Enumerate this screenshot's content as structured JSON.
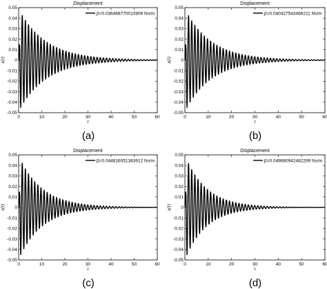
{
  "chart_data": [
    {
      "id": "a",
      "type": "line",
      "title": "Displacement",
      "xlabel": "t",
      "ylabel": "x(t)",
      "xlim": [
        0,
        60
      ],
      "ylim": [
        -0.05,
        0.05
      ],
      "xticks": [
        "0",
        "10",
        "20",
        "30",
        "40",
        "50",
        "60"
      ],
      "yticks": [
        "-0.05",
        "-0.04",
        "-0.03",
        "-0.02",
        "-0.01",
        "0",
        "0.01",
        "0.02",
        "0.03",
        "0.04",
        "0.05"
      ],
      "legend": "β=0.0364687700108​06 Ns/m",
      "legend_position": "top-right",
      "caption": "(a)",
      "series": [
        {
          "name": "β=0.036468770010806 Ns/m",
          "peak_amplitude": 0.045,
          "oscillation_period": 1.35,
          "decay_constant": 0.085,
          "color": "#000000"
        }
      ]
    },
    {
      "id": "b",
      "type": "line",
      "title": "Displacement",
      "xlabel": "t",
      "ylabel": "x(t)",
      "xlim": [
        0,
        60
      ],
      "ylim": [
        -0.05,
        0.05
      ],
      "xticks": [
        "0",
        "10",
        "20",
        "30",
        "40",
        "50",
        "60"
      ],
      "yticks": [
        "-0.05",
        "-0.04",
        "-0.03",
        "-0.02",
        "-0.01",
        "0",
        "0.01",
        "0.02",
        "0.03",
        "0.04",
        "0.05"
      ],
      "legend": "β=0.040427543466211 Ns/m",
      "legend_position": "top-right",
      "caption": "(b)",
      "series": [
        {
          "name": "β=0.040427543466211 Ns/m",
          "peak_amplitude": 0.045,
          "oscillation_period": 1.35,
          "decay_constant": 0.09,
          "color": "#000000"
        }
      ]
    },
    {
      "id": "c",
      "type": "line",
      "title": "Displacement",
      "xlabel": "t",
      "ylabel": "x(t)",
      "xlim": [
        0,
        60
      ],
      "ylim": [
        -0.05,
        0.05
      ],
      "xticks": [
        "0",
        "10",
        "20",
        "30",
        "40",
        "50",
        "60"
      ],
      "yticks": [
        "-0.05",
        "-0.04",
        "-0.03",
        "-0.02",
        "-0.01",
        "0",
        "0.01",
        "0.02",
        "0.03",
        "0.04",
        "0.05"
      ],
      "legend": "β=0.044816051383912 Ns/m",
      "legend_position": "top-right",
      "caption": "(c)",
      "series": [
        {
          "name": "β=0.044816051383912 Ns/m",
          "peak_amplitude": 0.045,
          "oscillation_period": 1.35,
          "decay_constant": 0.1,
          "color": "#000000"
        }
      ]
    },
    {
      "id": "d",
      "type": "line",
      "title": "Displacement",
      "xlabel": "t",
      "ylabel": "x(t)",
      "xlim": [
        0,
        60
      ],
      "ylim": [
        -0.05,
        0.05
      ],
      "xticks": [
        "0",
        "10",
        "20",
        "30",
        "40",
        "50",
        "60"
      ],
      "yticks": [
        "-0.05",
        "-0.04",
        "-0.03",
        "-0.02",
        "-0.01",
        "0",
        "0.01",
        "0.02",
        "0.03",
        "0.04",
        "0.05"
      ],
      "legend": "β=0.049680942482299 Ns/m",
      "legend_position": "top-right",
      "caption": "(d)",
      "series": [
        {
          "name": "β=0.049680942482299 Ns/m",
          "peak_amplitude": 0.045,
          "oscillation_period": 1.35,
          "decay_constant": 0.11,
          "color": "#000000"
        }
      ]
    }
  ]
}
